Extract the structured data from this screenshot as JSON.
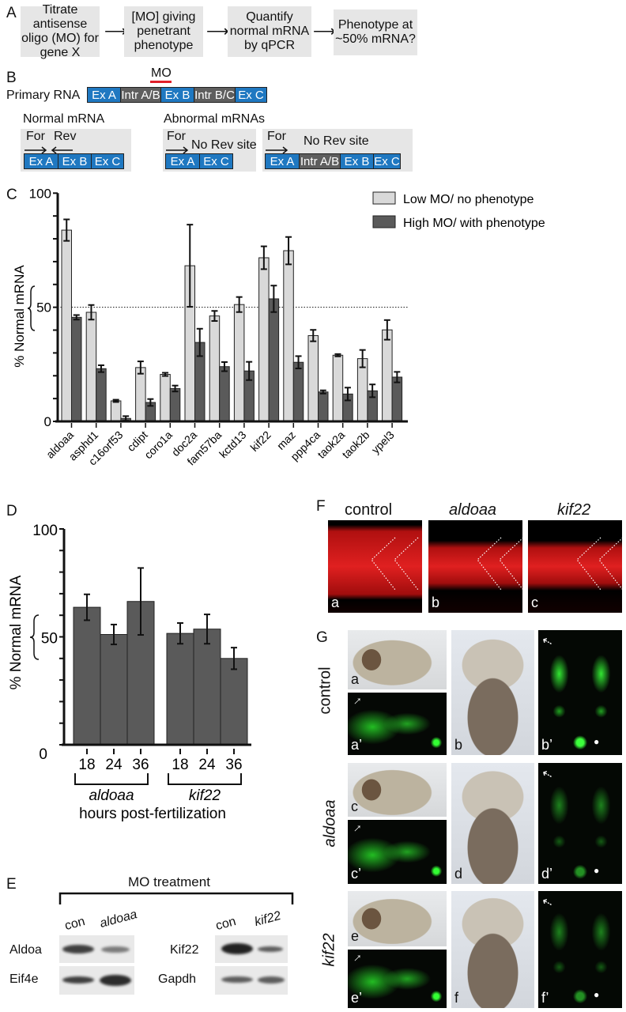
{
  "panel_labels": {
    "a": "A",
    "b": "B",
    "c": "C",
    "d": "D",
    "e": "E",
    "f": "F",
    "g": "G"
  },
  "panel_a": {
    "steps": [
      "Titrate antisense oligo (MO) for gene X",
      "[MO] giving penetrant phenotype",
      "Quantify normal mRNA by qPCR",
      "Phenotype at ~50% mRNA?"
    ],
    "arrow": "⟶"
  },
  "panel_b": {
    "mo_label": "MO",
    "mo_color": "#e0202a",
    "primary_label": "Primary RNA",
    "primary_segments": [
      "Ex A",
      "Intr A/B",
      "Ex B",
      "Intr B/C",
      "Ex C"
    ],
    "normal_label": "Normal mRNA",
    "normal_segments": [
      "Ex A",
      "Ex B",
      "Ex C"
    ],
    "forward_primer": "For",
    "reverse_primer": "Rev",
    "abnormal_label": "Abnormal mRNAs",
    "no_rev": "No Rev site",
    "abnormal1_segments": [
      "Ex A",
      "Ex C"
    ],
    "abnormal2_segments": [
      "Ex A",
      "Intr A/B",
      "Ex B",
      "Ex C"
    ],
    "exon_color": "#1f78c1",
    "intron_color": "#5e5e5e"
  },
  "chart_data": [
    {
      "id": "C",
      "type": "bar",
      "ylabel": "% Normal mRNA",
      "ylim": [
        0,
        100
      ],
      "yticks": [
        "0",
        "50",
        "100"
      ],
      "reference_line": 50,
      "legend_position": "top-right",
      "categories": [
        "aldoaa",
        "asphd1",
        "c16orf53",
        "cdipt",
        "coro1a",
        "doc2a",
        "fam57ba",
        "kctd13",
        "kif22",
        "maz",
        "ppp4ca",
        "taok2a",
        "taok2b",
        "ypel3"
      ],
      "series": [
        {
          "name": "Low MO/ no phenotype",
          "color": "#d9d9d9",
          "values": [
            83.8,
            47.8,
            9.0,
            23.6,
            20.6,
            68.2,
            46.2,
            51.2,
            71.7,
            74.8,
            37.6,
            29.0,
            27.5,
            40.1
          ],
          "errors": [
            4.7,
            3.2,
            0.5,
            2.7,
            0.7,
            18.0,
            2.2,
            3.3,
            5.0,
            6.0,
            2.5,
            0.5,
            3.8,
            4.3
          ]
        },
        {
          "name": "High MO/ with phenotype",
          "color": "#5a5a5a",
          "values": [
            45.6,
            23.1,
            1.3,
            8.3,
            14.4,
            34.6,
            24.0,
            22.1,
            53.7,
            25.9,
            12.9,
            12.0,
            13.4,
            19.4
          ],
          "errors": [
            1.0,
            1.5,
            1.0,
            1.5,
            1.3,
            6.0,
            2.0,
            4.0,
            5.8,
            2.7,
            0.7,
            2.8,
            2.8,
            2.3
          ]
        }
      ]
    },
    {
      "id": "D",
      "type": "bar",
      "ylabel": "% Normal mRNA",
      "xlabel": "hours post-fertilization",
      "ylim": [
        0,
        100
      ],
      "yticks": [
        "0",
        "50",
        "100"
      ],
      "groups": [
        {
          "name": "aldoaa",
          "categories": [
            "18",
            "24",
            "36"
          ],
          "values": [
            63.7,
            51.1,
            66.4
          ],
          "errors": [
            6.0,
            4.6,
            15.5
          ]
        },
        {
          "name": "kif22",
          "categories": [
            "18",
            "24",
            "36"
          ],
          "values": [
            51.6,
            53.6,
            40.0
          ],
          "errors": [
            4.8,
            6.8,
            5.0
          ]
        }
      ],
      "color": "#5a5a5a"
    }
  ],
  "panel_e": {
    "title": "MO treatment",
    "left_lanes": [
      "con",
      "aldoaa"
    ],
    "right_lanes": [
      "con",
      "kif22"
    ],
    "left_rows": [
      "Aldoa",
      "Eif4e"
    ],
    "right_rows": [
      "Kif22",
      "Gapdh"
    ]
  },
  "panel_f": {
    "titles": [
      "control",
      "aldoaa",
      "kif22"
    ],
    "letters": [
      "a",
      "b",
      "c"
    ]
  },
  "panel_g": {
    "rows": [
      "control",
      "aldoaa",
      "kif22"
    ],
    "letters": [
      [
        "a",
        "a’",
        "b",
        "b’"
      ],
      [
        "c",
        "c’",
        "d",
        "d’"
      ],
      [
        "e",
        "e’",
        "f",
        "f’"
      ]
    ]
  }
}
